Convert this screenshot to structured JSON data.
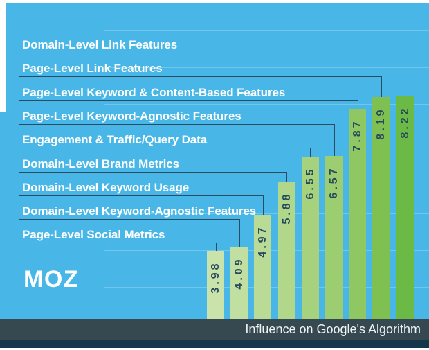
{
  "brand": {
    "logo_text": "MOZ"
  },
  "footer": {
    "label": "Influence on Google's Algorithm"
  },
  "colors": {
    "background": "#48b7e7",
    "footer_bg": "#364850",
    "footer_strip_bg": "#15364a",
    "footer_text": "#eef3f5",
    "label_text": "#ffffff",
    "leader_line": "#2b4d63",
    "value_text": "#27495d",
    "gridline": "rgba(255,255,255,0.22)"
  },
  "chart_data": {
    "type": "bar",
    "title": "Influence on Google's Algorithm",
    "orientation": "vertical bars ascending left to right; labels listed top to bottom map to bars right to left via elbow leader lines",
    "items": [
      {
        "label": "Domain-Level Link Features",
        "value": 8.22
      },
      {
        "label": "Page-Level Link Features",
        "value": 8.19
      },
      {
        "label": "Page-Level Keyword & Content-Based Features",
        "value": 7.87
      },
      {
        "label": "Page-Level Keyword-Agnostic Features",
        "value": 6.57
      },
      {
        "label": "Engagement & Traffic/Query Data",
        "value": 6.55
      },
      {
        "label": "Domain-Level Brand Metrics",
        "value": 5.88
      },
      {
        "label": "Domain-Level Keyword Usage",
        "value": 4.97
      },
      {
        "label": "Domain-Level Keyword-Agnostic Features",
        "value": 4.09
      },
      {
        "label": "Page-Level Social Metrics",
        "value": 3.98
      }
    ],
    "value_label_decimals": 2,
    "value_axis": {
      "baseline_value": 2.125,
      "gridline_values": [
        3,
        4,
        5,
        6,
        7,
        8,
        9,
        10
      ],
      "gridlines_visible": true,
      "axis_labels_visible": false
    },
    "bar_colors_left_to_right": [
      "#c9e3ab",
      "#c0dfa0",
      "#b9db96",
      "#b0d78a",
      "#a7d27d",
      "#9dcd71",
      "#8fc763",
      "#7fc053",
      "#6cba46"
    ],
    "legend": "none"
  }
}
